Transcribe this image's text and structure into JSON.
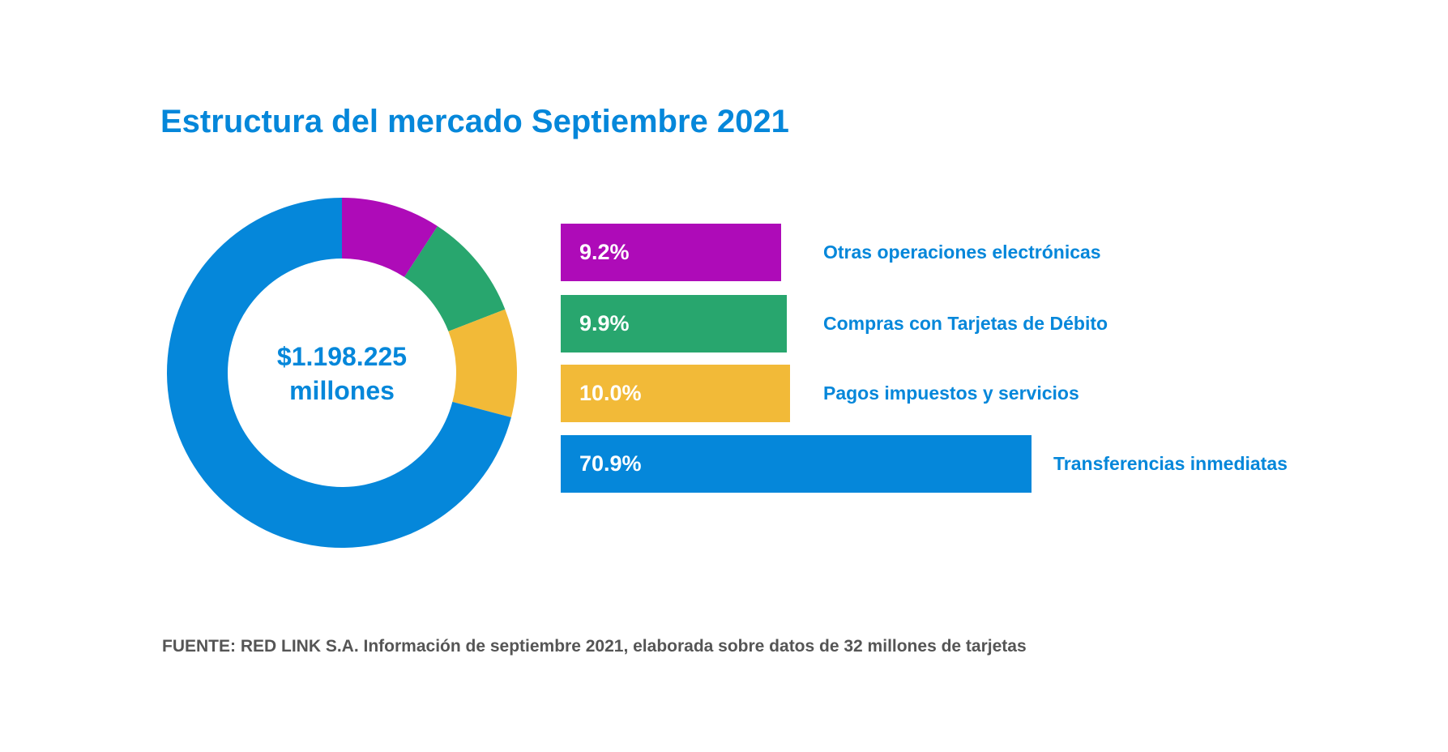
{
  "chart_data": {
    "type": "pie",
    "subtype": "donut",
    "title": "Estructura del mercado Septiembre 2021",
    "center_label": [
      "$1.198.225",
      "millones"
    ],
    "categories": [
      "Otras operaciones electrónicas",
      "Compras con Tarjetas de Débito",
      "Pagos impuestos y servicios",
      "Transferencias inmediatas"
    ],
    "values": [
      9.2,
      9.9,
      10.0,
      70.9
    ],
    "value_labels": [
      "9.2%",
      "9.9%",
      "10.0%",
      "70.9%"
    ],
    "colors": [
      "#ae0bb8",
      "#28a66e",
      "#f2ba38",
      "#0587da"
    ],
    "footer": "FUENTE: RED LINK S.A. Información de septiembre 2021, elaborada sobre datos de 32 millones de tarjetas"
  }
}
